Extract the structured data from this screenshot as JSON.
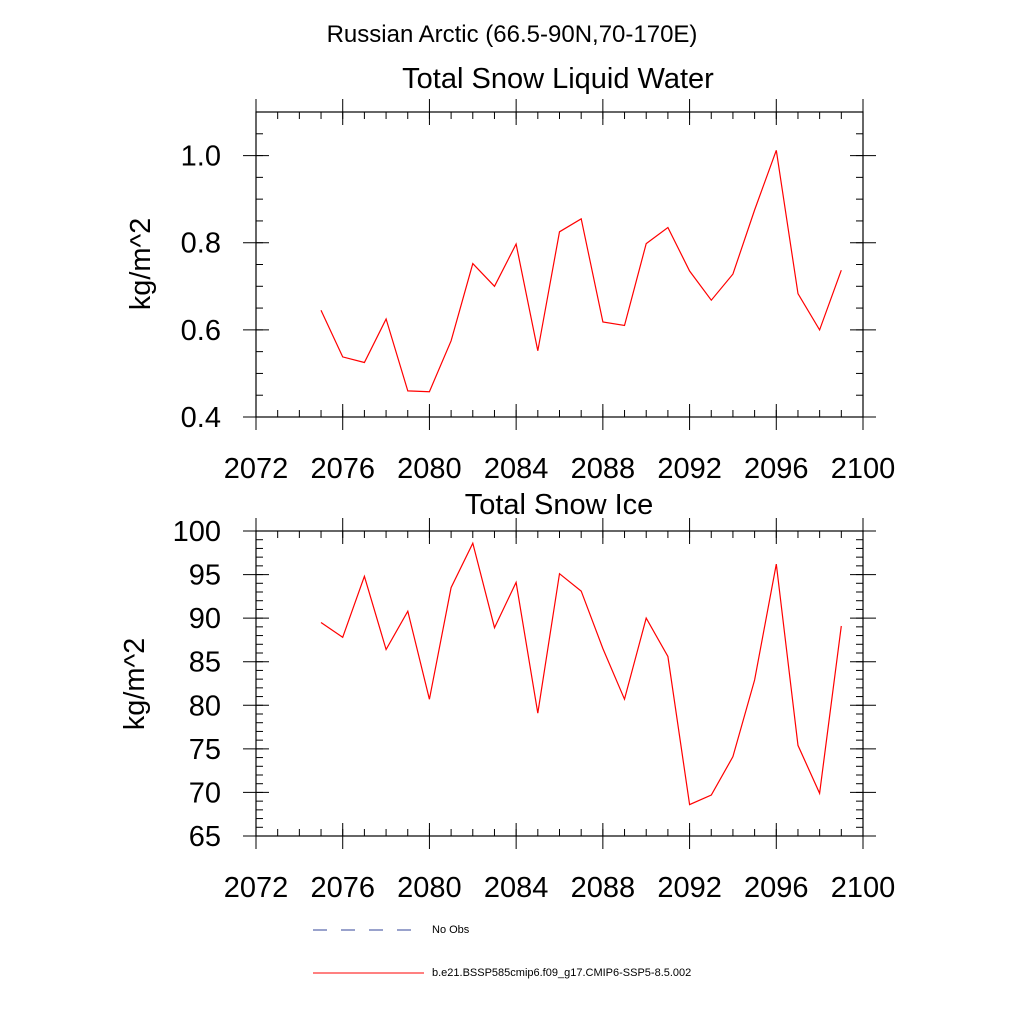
{
  "figure": {
    "title": "Russian Arctic (66.5-90N,70-170E)"
  },
  "chart_data": [
    {
      "type": "line",
      "title": "Total Snow Liquid Water",
      "xlabel": "",
      "ylabel": "kg/m^2",
      "xlim": [
        2072,
        2100
      ],
      "ylim": [
        0.4,
        1.1
      ],
      "x_ticks": [
        2072,
        2076,
        2080,
        2084,
        2088,
        2092,
        2096,
        2100
      ],
      "x_tick_labels": [
        "2072",
        "2076",
        "2080",
        "2084",
        "2088",
        "2092",
        "2096",
        "2100"
      ],
      "y_ticks": [
        0.4,
        0.6,
        0.8,
        1.0
      ],
      "y_tick_labels": [
        "0.4",
        "0.6",
        "0.8",
        "1.0"
      ],
      "x_minor_step": 1,
      "y_minor_step": 0.05,
      "series": [
        {
          "name": "b.e21.BSSP585cmip6.f09_g17.CMIP6-SSP5-8.5.002",
          "color": "#ff0000",
          "x": [
            2075,
            2076,
            2077,
            2078,
            2079,
            2080,
            2081,
            2082,
            2083,
            2084,
            2085,
            2086,
            2087,
            2088,
            2089,
            2090,
            2091,
            2092,
            2093,
            2094,
            2095,
            2096,
            2097,
            2098,
            2099
          ],
          "values": [
            0.645,
            0.538,
            0.525,
            0.625,
            0.46,
            0.458,
            0.575,
            0.752,
            0.7,
            0.797,
            0.552,
            0.825,
            0.855,
            0.618,
            0.61,
            0.798,
            0.835,
            0.735,
            0.668,
            0.728,
            0.875,
            1.012,
            0.683,
            0.6,
            0.737
          ]
        }
      ]
    },
    {
      "type": "line",
      "title": "Total Snow Ice",
      "xlabel": "",
      "ylabel": "kg/m^2",
      "xlim": [
        2072,
        2100
      ],
      "ylim": [
        65,
        100
      ],
      "x_ticks": [
        2072,
        2076,
        2080,
        2084,
        2088,
        2092,
        2096,
        2100
      ],
      "x_tick_labels": [
        "2072",
        "2076",
        "2080",
        "2084",
        "2088",
        "2092",
        "2096",
        "2100"
      ],
      "y_ticks": [
        65,
        70,
        75,
        80,
        85,
        90,
        95,
        100
      ],
      "y_tick_labels": [
        "65",
        "70",
        "75",
        "80",
        "85",
        "90",
        "95",
        "100"
      ],
      "x_minor_step": 1,
      "y_minor_step": 1,
      "series": [
        {
          "name": "b.e21.BSSP585cmip6.f09_g17.CMIP6-SSP5-8.5.002",
          "color": "#ff0000",
          "x": [
            2075,
            2076,
            2077,
            2078,
            2079,
            2080,
            2081,
            2082,
            2083,
            2084,
            2085,
            2086,
            2087,
            2088,
            2089,
            2090,
            2091,
            2092,
            2093,
            2094,
            2095,
            2096,
            2097,
            2098,
            2099
          ],
          "values": [
            89.5,
            87.8,
            94.8,
            86.4,
            90.8,
            80.7,
            93.5,
            98.6,
            88.9,
            94.1,
            79.1,
            95.1,
            93.1,
            86.5,
            80.7,
            90.0,
            85.6,
            68.6,
            69.7,
            74.1,
            82.9,
            96.2,
            75.4,
            69.9,
            89.1
          ]
        }
      ]
    }
  ],
  "legend": {
    "position": "bottom",
    "items": [
      {
        "label": "No Obs",
        "style": "dashed",
        "color": "#334499"
      },
      {
        "label": "b.e21.BSSP585cmip6.f09_g17.CMIP6-SSP5-8.5.002",
        "style": "solid",
        "color": "#ff0000"
      }
    ]
  }
}
